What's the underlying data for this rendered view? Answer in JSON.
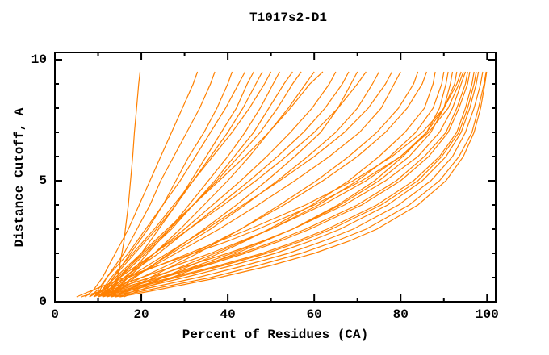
{
  "window": {
    "background": "#ffffff"
  },
  "chart_data": {
    "type": "line",
    "title": "T1017s2-D1",
    "xlabel": "Percent of Residues (CA)",
    "ylabel": "Distance Cutoff, A",
    "xlim": [
      0,
      102
    ],
    "ylim": [
      0,
      10.3
    ],
    "grid": false,
    "legend": "none",
    "axis_color": "#000000",
    "text_color": "#000000",
    "line_color": "#ff8000",
    "x_major_ticks": [
      0,
      20,
      40,
      60,
      80,
      100
    ],
    "x_tick_labels": [
      "0",
      "20",
      "40",
      "60",
      "80",
      "100"
    ],
    "x_minor_step": 10,
    "y_major_ticks": [
      0,
      5,
      10
    ],
    "y_tick_labels": [
      "0",
      "5",
      "10"
    ],
    "y_minor_step": 1,
    "series_description": "Each series is the percent of CA residues (x) under each distance cutoff (y). Shared y grid in y_levels.",
    "y_levels": [
      0.2,
      0.5,
      1,
      1.5,
      2,
      2.5,
      3,
      4,
      5,
      6,
      7,
      8,
      9,
      9.5
    ],
    "series": [
      [
        13,
        13.5,
        14.5,
        15,
        15.5,
        16,
        16.3,
        17,
        17.5,
        18,
        18.4,
        18.9,
        19.4,
        19.7
      ],
      [
        7,
        9,
        11,
        12.5,
        14,
        15.5,
        17,
        19.5,
        22,
        24.5,
        27,
        29.5,
        32,
        33
      ],
      [
        9,
        10.5,
        12,
        14,
        16,
        17.5,
        19,
        22,
        24.5,
        27.5,
        30.5,
        33.5,
        36,
        37
      ],
      [
        11,
        12,
        13.5,
        15.5,
        17.5,
        19.5,
        21.5,
        25,
        28,
        31,
        34.5,
        37.5,
        40,
        41
      ],
      [
        8,
        10,
        12,
        14.5,
        17,
        19,
        21,
        25,
        29,
        32.5,
        36,
        39.5,
        42.5,
        44
      ],
      [
        12,
        13,
        15,
        17.5,
        20,
        22,
        24,
        28,
        31.5,
        35,
        38.5,
        42,
        44.5,
        46
      ],
      [
        10,
        11.5,
        13.5,
        16,
        18.5,
        21,
        23.5,
        28,
        32,
        36,
        40,
        43.5,
        46.5,
        48
      ],
      [
        9,
        11,
        13,
        15.5,
        18,
        20.5,
        23,
        27.5,
        32,
        36.5,
        41,
        45,
        48.5,
        50
      ],
      [
        13,
        14.5,
        16.5,
        19,
        21.5,
        24,
        26.5,
        31,
        35.5,
        40,
        44,
        47.5,
        50.5,
        52
      ],
      [
        11,
        12.5,
        15,
        18,
        21,
        24,
        27,
        32,
        37,
        41.5,
        46,
        49.5,
        53,
        55
      ],
      [
        10,
        12,
        14.5,
        17.5,
        20.5,
        23.5,
        26.5,
        32,
        37.5,
        42.5,
        47.5,
        51.5,
        55,
        57
      ],
      [
        12,
        14,
        17,
        20,
        23,
        26,
        29,
        34.5,
        40,
        45,
        49.5,
        54,
        58,
        60
      ],
      [
        9,
        11,
        14,
        17,
        20,
        23,
        26,
        32,
        38,
        44,
        49.5,
        54.5,
        59,
        62
      ],
      [
        11,
        13,
        16,
        19.5,
        23,
        26.5,
        30,
        36.5,
        43,
        49,
        54.5,
        59.5,
        63.5,
        65
      ],
      [
        10,
        12.5,
        16,
        20,
        24,
        27.5,
        31,
        38,
        45,
        51.5,
        57.5,
        62.5,
        66.5,
        68
      ],
      [
        13,
        15,
        18.5,
        22.5,
        26.5,
        30.5,
        34.5,
        42,
        49,
        55.5,
        61.5,
        65.5,
        68.5,
        70
      ],
      [
        9,
        11.5,
        15,
        19,
        23,
        27,
        31,
        39,
        46.5,
        53.5,
        60,
        65.5,
        70,
        72
      ],
      [
        12,
        14.5,
        18,
        22.5,
        27,
        31.5,
        36,
        44,
        51.5,
        58.5,
        65,
        70,
        73.5,
        75
      ],
      [
        10,
        13,
        17,
        21.5,
        26,
        30.5,
        35,
        43.5,
        52,
        60,
        67,
        72.5,
        76.5,
        78
      ],
      [
        11,
        14,
        18,
        23,
        28,
        33,
        38,
        47,
        55.5,
        63.5,
        70.5,
        75.5,
        78.5,
        80
      ],
      [
        14,
        17,
        22,
        27.5,
        33,
        38,
        43,
        52,
        60.5,
        68,
        74.5,
        79.5,
        83,
        84
      ],
      [
        12,
        15,
        20,
        26,
        32,
        37.5,
        43,
        53,
        62,
        70,
        76.5,
        81.5,
        85,
        86
      ],
      [
        15,
        19,
        25,
        31.5,
        38,
        44,
        49.5,
        59.5,
        68,
        75,
        81,
        85.5,
        87.5,
        88
      ],
      [
        13,
        17,
        23,
        30,
        37,
        43.5,
        50,
        61,
        70,
        77.5,
        83.5,
        87.5,
        89.5,
        90
      ],
      [
        16,
        20,
        27,
        34.5,
        42,
        48.5,
        55,
        65.5,
        74,
        80.5,
        86,
        89,
        90.5,
        91
      ],
      [
        14,
        18,
        25,
        33,
        41,
        48,
        55,
        66,
        75,
        82,
        87,
        90,
        91.5,
        92
      ],
      [
        6,
        12,
        20,
        28,
        36,
        43,
        50,
        62,
        72,
        80,
        86,
        90,
        93,
        94
      ],
      [
        9,
        13,
        22,
        31,
        40,
        48,
        55,
        67,
        76.5,
        84,
        89,
        92,
        94,
        95
      ],
      [
        10,
        15,
        25,
        35,
        44,
        52,
        59,
        71,
        80,
        86.5,
        91,
        93.5,
        95.5,
        96
      ],
      [
        11,
        16,
        27,
        38,
        48,
        56,
        63,
        74.5,
        83,
        89,
        93,
        95,
        96.5,
        97
      ],
      [
        12,
        18,
        30,
        41,
        51,
        59,
        66,
        77,
        85,
        90.5,
        94,
        96,
        97.5,
        98
      ],
      [
        13,
        20,
        33,
        44,
        54,
        62,
        69,
        79.5,
        87,
        92,
        95,
        97,
        98.5,
        99
      ],
      [
        14,
        22,
        36,
        47,
        57,
        65,
        72,
        82,
        89,
        93.5,
        96.5,
        98,
        99.3,
        99.8
      ],
      [
        10,
        14,
        24,
        34,
        43,
        51,
        58,
        70,
        79,
        85.5,
        90.5,
        93,
        95,
        95.5
      ],
      [
        5,
        9,
        16,
        24,
        32,
        40,
        47,
        60,
        71,
        80,
        86.5,
        91,
        93.5,
        94.5
      ],
      [
        8,
        11,
        17,
        24,
        31,
        38,
        45,
        58,
        69,
        78,
        85,
        90,
        92.5,
        93
      ],
      [
        15,
        24,
        38,
        50,
        60,
        68,
        74.5,
        84,
        90.5,
        94.5,
        97,
        98.5,
        99.5,
        99.9
      ],
      [
        11,
        17,
        28,
        39,
        49,
        57,
        64,
        75.5,
        84,
        89.5,
        93.5,
        95.5,
        97,
        97.5
      ]
    ]
  }
}
